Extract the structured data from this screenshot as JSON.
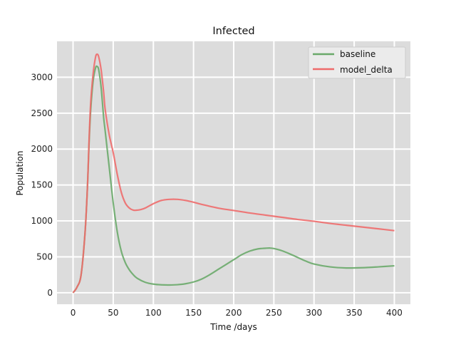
{
  "chart_data": {
    "type": "line",
    "title": "Infected",
    "xlabel": "Time /days",
    "ylabel": "Population",
    "xlim": [
      -20,
      420
    ],
    "ylim": [
      -160,
      3500
    ],
    "xticks": [
      0,
      50,
      100,
      150,
      200,
      250,
      300,
      350,
      400
    ],
    "yticks": [
      0,
      500,
      1000,
      1500,
      2000,
      2500,
      3000
    ],
    "grid": true,
    "legend_position": "top-right",
    "series": [
      {
        "name": "baseline",
        "color": "#6aaa6a",
        "x": [
          0,
          5,
          10,
          15,
          18,
          20,
          22,
          25,
          28,
          30,
          32,
          35,
          38,
          40,
          45,
          50,
          55,
          60,
          65,
          70,
          75,
          80,
          90,
          100,
          110,
          120,
          130,
          140,
          150,
          160,
          170,
          180,
          190,
          200,
          210,
          220,
          230,
          240,
          245,
          250,
          260,
          270,
          280,
          290,
          300,
          320,
          340,
          360,
          380,
          400
        ],
        "y": [
          0,
          80,
          250,
          850,
          1500,
          2100,
          2550,
          2950,
          3130,
          3150,
          3100,
          2850,
          2450,
          2250,
          1750,
          1250,
          850,
          580,
          420,
          320,
          250,
          200,
          145,
          120,
          110,
          108,
          112,
          125,
          150,
          190,
          250,
          320,
          390,
          460,
          530,
          580,
          610,
          620,
          622,
          615,
          585,
          540,
          490,
          440,
          400,
          360,
          345,
          348,
          360,
          375
        ]
      },
      {
        "name": "model_delta",
        "color": "#ee6b6b",
        "x": [
          0,
          5,
          10,
          15,
          18,
          20,
          22,
          25,
          28,
          30,
          32,
          35,
          38,
          40,
          45,
          50,
          55,
          60,
          65,
          70,
          75,
          80,
          85,
          90,
          100,
          110,
          120,
          130,
          140,
          150,
          160,
          180,
          200,
          220,
          240,
          260,
          280,
          300,
          320,
          340,
          360,
          380,
          400
        ],
        "y": [
          0,
          80,
          250,
          850,
          1500,
          2150,
          2650,
          3050,
          3280,
          3320,
          3280,
          3100,
          2800,
          2550,
          2200,
          1950,
          1650,
          1400,
          1250,
          1180,
          1150,
          1150,
          1160,
          1180,
          1240,
          1285,
          1300,
          1300,
          1285,
          1260,
          1230,
          1180,
          1145,
          1110,
          1080,
          1050,
          1020,
          995,
          965,
          940,
          915,
          890,
          865
        ]
      }
    ]
  }
}
